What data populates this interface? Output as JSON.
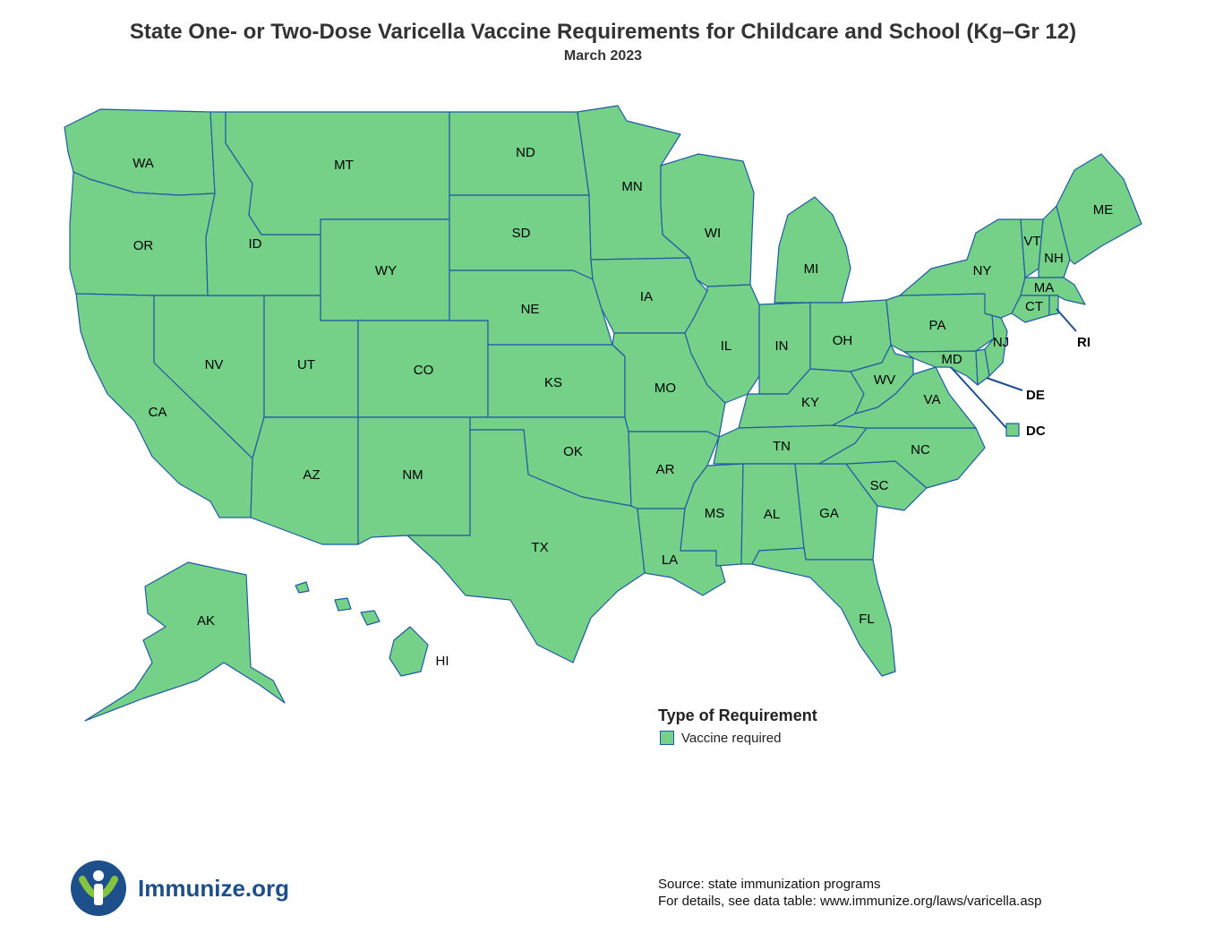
{
  "header": {
    "title": "State One- or Two-Dose Varicella Vaccine Requirements for Childcare and School (Kg–Gr 12)",
    "subtitle": "March 2023"
  },
  "colors": {
    "vaccine_required": "#75d187",
    "border": "#1f5aa6",
    "brand": "#1d4f8a"
  },
  "map": {
    "states": [
      {
        "abbr": "WA",
        "requirement": "Vaccine required"
      },
      {
        "abbr": "OR",
        "requirement": "Vaccine required"
      },
      {
        "abbr": "CA",
        "requirement": "Vaccine required"
      },
      {
        "abbr": "NV",
        "requirement": "Vaccine required"
      },
      {
        "abbr": "ID",
        "requirement": "Vaccine required"
      },
      {
        "abbr": "MT",
        "requirement": "Vaccine required"
      },
      {
        "abbr": "WY",
        "requirement": "Vaccine required"
      },
      {
        "abbr": "UT",
        "requirement": "Vaccine required"
      },
      {
        "abbr": "CO",
        "requirement": "Vaccine required"
      },
      {
        "abbr": "AZ",
        "requirement": "Vaccine required"
      },
      {
        "abbr": "NM",
        "requirement": "Vaccine required"
      },
      {
        "abbr": "ND",
        "requirement": "Vaccine required"
      },
      {
        "abbr": "SD",
        "requirement": "Vaccine required"
      },
      {
        "abbr": "NE",
        "requirement": "Vaccine required"
      },
      {
        "abbr": "KS",
        "requirement": "Vaccine required"
      },
      {
        "abbr": "OK",
        "requirement": "Vaccine required"
      },
      {
        "abbr": "TX",
        "requirement": "Vaccine required"
      },
      {
        "abbr": "MN",
        "requirement": "Vaccine required"
      },
      {
        "abbr": "IA",
        "requirement": "Vaccine required"
      },
      {
        "abbr": "MO",
        "requirement": "Vaccine required"
      },
      {
        "abbr": "AR",
        "requirement": "Vaccine required"
      },
      {
        "abbr": "LA",
        "requirement": "Vaccine required"
      },
      {
        "abbr": "WI",
        "requirement": "Vaccine required"
      },
      {
        "abbr": "IL",
        "requirement": "Vaccine required"
      },
      {
        "abbr": "MI",
        "requirement": "Vaccine required"
      },
      {
        "abbr": "IN",
        "requirement": "Vaccine required"
      },
      {
        "abbr": "OH",
        "requirement": "Vaccine required"
      },
      {
        "abbr": "KY",
        "requirement": "Vaccine required"
      },
      {
        "abbr": "TN",
        "requirement": "Vaccine required"
      },
      {
        "abbr": "MS",
        "requirement": "Vaccine required"
      },
      {
        "abbr": "AL",
        "requirement": "Vaccine required"
      },
      {
        "abbr": "GA",
        "requirement": "Vaccine required"
      },
      {
        "abbr": "FL",
        "requirement": "Vaccine required"
      },
      {
        "abbr": "SC",
        "requirement": "Vaccine required"
      },
      {
        "abbr": "NC",
        "requirement": "Vaccine required"
      },
      {
        "abbr": "VA",
        "requirement": "Vaccine required"
      },
      {
        "abbr": "WV",
        "requirement": "Vaccine required"
      },
      {
        "abbr": "PA",
        "requirement": "Vaccine required"
      },
      {
        "abbr": "NY",
        "requirement": "Vaccine required"
      },
      {
        "abbr": "VT",
        "requirement": "Vaccine required"
      },
      {
        "abbr": "NH",
        "requirement": "Vaccine required"
      },
      {
        "abbr": "ME",
        "requirement": "Vaccine required"
      },
      {
        "abbr": "MA",
        "requirement": "Vaccine required"
      },
      {
        "abbr": "CT",
        "requirement": "Vaccine required"
      },
      {
        "abbr": "RI",
        "requirement": "Vaccine required"
      },
      {
        "abbr": "NJ",
        "requirement": "Vaccine required"
      },
      {
        "abbr": "DE",
        "requirement": "Vaccine required"
      },
      {
        "abbr": "MD",
        "requirement": "Vaccine required"
      },
      {
        "abbr": "DC",
        "requirement": "Vaccine required"
      },
      {
        "abbr": "AK",
        "requirement": "Vaccine required"
      },
      {
        "abbr": "HI",
        "requirement": "Vaccine required"
      }
    ]
  },
  "legend": {
    "title": "Type of Requirement",
    "items": [
      {
        "label": "Vaccine required"
      }
    ]
  },
  "source": {
    "line1": "Source: state immunization programs",
    "line2": "For details, see data table: www.immunize.org/laws/varicella.asp"
  },
  "logo": {
    "text": "Immunize.org",
    "icon": "immunize-logo-icon"
  }
}
